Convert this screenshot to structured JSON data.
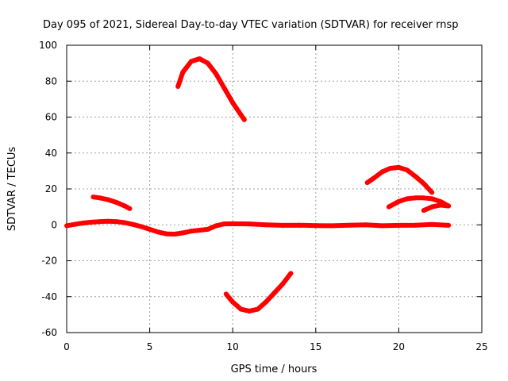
{
  "chart_data": {
    "type": "line",
    "title": "Day 095 of 2021, Sidereal Day-to-day VTEC variation (SDTVAR) for receiver rnsp",
    "xlabel": "GPS time / hours",
    "ylabel": "SDTVAR / TECUs",
    "xlim": [
      0,
      25
    ],
    "ylim": [
      -60,
      100
    ],
    "xticks": [
      0,
      5,
      10,
      15,
      20,
      25
    ],
    "yticks": [
      -60,
      -40,
      -20,
      0,
      20,
      40,
      60,
      80,
      100
    ],
    "xtick_labels": [
      "0",
      "5",
      "10",
      "15",
      "20",
      "25"
    ],
    "ytick_labels": [
      "-60",
      "-40",
      "-20",
      "0",
      "20",
      "40",
      "60",
      "80",
      "100"
    ],
    "grid": true,
    "color": "#ff0000",
    "series": [
      {
        "name": "baseline",
        "x": [
          0,
          0.5,
          1,
          1.5,
          2,
          2.5,
          3,
          3.5,
          4,
          4.5,
          5,
          5.5,
          6,
          6.5,
          7,
          7.5,
          8,
          8.5,
          9,
          9.5,
          10,
          11,
          12,
          13,
          14,
          15,
          16,
          17,
          18,
          19,
          20,
          21,
          22,
          23
        ],
        "y": [
          -0.5,
          0.3,
          1,
          1.5,
          1.8,
          2,
          1.8,
          1.2,
          0.2,
          -1,
          -2.5,
          -4,
          -5,
          -5.2,
          -4.5,
          -3.5,
          -3,
          -2.5,
          -0.5,
          0.5,
          0.6,
          0.5,
          0,
          -0.3,
          -0.2,
          -0.4,
          -0.5,
          -0.2,
          0,
          -0.5,
          -0.3,
          -0.2,
          0.2,
          -0.3
        ]
      },
      {
        "name": "pass-a",
        "x": [
          1.6,
          2,
          2.5,
          3,
          3.5,
          3.8
        ],
        "y": [
          15.5,
          15,
          14,
          12.5,
          10.5,
          9
        ]
      },
      {
        "name": "pass-b",
        "x": [
          6.7,
          7,
          7.5,
          8,
          8.5,
          9,
          9.5,
          10,
          10.7
        ],
        "y": [
          77,
          85,
          91,
          92.5,
          90,
          84,
          76,
          68,
          58.5
        ]
      },
      {
        "name": "pass-c",
        "x": [
          9.6,
          10,
          10.5,
          11,
          11.5,
          12,
          12.5,
          13,
          13.5
        ],
        "y": [
          -38.5,
          -43,
          -47,
          -48,
          -47,
          -43,
          -38,
          -33,
          -27
        ]
      },
      {
        "name": "pass-d",
        "x": [
          18.1,
          18.5,
          19,
          19.5,
          20,
          20.5,
          21,
          21.5,
          22
        ],
        "y": [
          23.5,
          26,
          29.5,
          31.5,
          32,
          30.5,
          27,
          23,
          18
        ]
      },
      {
        "name": "pass-e",
        "x": [
          19.4,
          20,
          20.5,
          21,
          21.5,
          22,
          22.5,
          23
        ],
        "y": [
          10,
          13,
          14.5,
          15,
          15,
          14.5,
          13,
          10.5
        ]
      },
      {
        "name": "pass-f",
        "x": [
          21.5,
          22,
          22.5,
          23
        ],
        "y": [
          8,
          10,
          11,
          10.5
        ]
      }
    ]
  }
}
